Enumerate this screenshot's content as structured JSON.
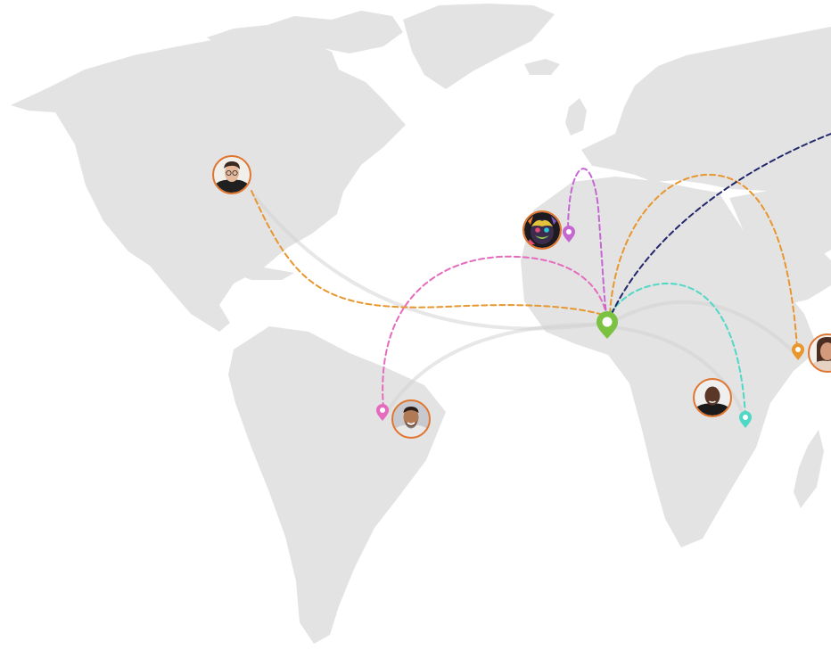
{
  "map": {
    "hub": {
      "name": "hub-pin",
      "color": "#7cc242"
    },
    "contacts": [
      {
        "name": "contact-north-america",
        "icon": "man-with-glasses-avatar",
        "ring": "#e0752f",
        "color": "#e8962e"
      },
      {
        "name": "contact-west-africa",
        "icon": "colorful-ape-portrait-avatar",
        "ring": "#e0752f",
        "color": "#c467d0"
      },
      {
        "name": "contact-brazil",
        "icon": "smiling-man-avatar",
        "ring": "#e0752f",
        "color": "#e56bbd"
      },
      {
        "name": "contact-central-africa",
        "icon": "man-dark-shirt-avatar",
        "ring": "#e0752f",
        "color": "#4fd8c5"
      },
      {
        "name": "contact-east-africa",
        "icon": "woman-avatar",
        "ring": "#e0752f",
        "color": "#e8962e"
      },
      {
        "name": "contact-asia",
        "icon": "offscreen-contact",
        "ring": "",
        "color": "#22286b"
      }
    ]
  }
}
